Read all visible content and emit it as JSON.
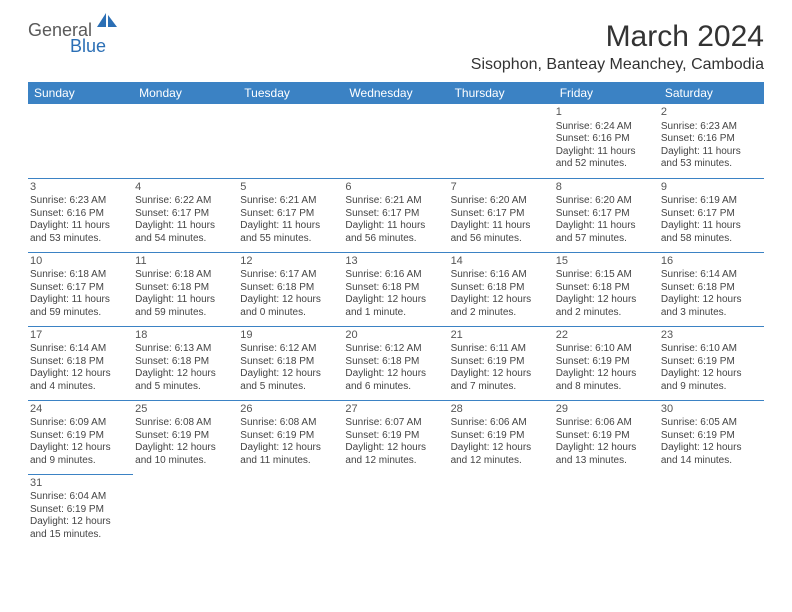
{
  "logo": {
    "text1": "General",
    "text2": "Blue"
  },
  "title": "March 2024",
  "location": "Sisophon, Banteay Meanchey, Cambodia",
  "colors": {
    "header_bg": "#3b82c4",
    "header_text": "#ffffff",
    "border": "#3b82c4",
    "logo_gray": "#5a5a5a",
    "logo_blue": "#2b6fb5",
    "text": "#444444"
  },
  "days_of_week": [
    "Sunday",
    "Monday",
    "Tuesday",
    "Wednesday",
    "Thursday",
    "Friday",
    "Saturday"
  ],
  "weeks": [
    [
      null,
      null,
      null,
      null,
      null,
      {
        "n": "1",
        "sr": "Sunrise: 6:24 AM",
        "ss": "Sunset: 6:16 PM",
        "d1": "Daylight: 11 hours",
        "d2": "and 52 minutes."
      },
      {
        "n": "2",
        "sr": "Sunrise: 6:23 AM",
        "ss": "Sunset: 6:16 PM",
        "d1": "Daylight: 11 hours",
        "d2": "and 53 minutes."
      }
    ],
    [
      {
        "n": "3",
        "sr": "Sunrise: 6:23 AM",
        "ss": "Sunset: 6:16 PM",
        "d1": "Daylight: 11 hours",
        "d2": "and 53 minutes."
      },
      {
        "n": "4",
        "sr": "Sunrise: 6:22 AM",
        "ss": "Sunset: 6:17 PM",
        "d1": "Daylight: 11 hours",
        "d2": "and 54 minutes."
      },
      {
        "n": "5",
        "sr": "Sunrise: 6:21 AM",
        "ss": "Sunset: 6:17 PM",
        "d1": "Daylight: 11 hours",
        "d2": "and 55 minutes."
      },
      {
        "n": "6",
        "sr": "Sunrise: 6:21 AM",
        "ss": "Sunset: 6:17 PM",
        "d1": "Daylight: 11 hours",
        "d2": "and 56 minutes."
      },
      {
        "n": "7",
        "sr": "Sunrise: 6:20 AM",
        "ss": "Sunset: 6:17 PM",
        "d1": "Daylight: 11 hours",
        "d2": "and 56 minutes."
      },
      {
        "n": "8",
        "sr": "Sunrise: 6:20 AM",
        "ss": "Sunset: 6:17 PM",
        "d1": "Daylight: 11 hours",
        "d2": "and 57 minutes."
      },
      {
        "n": "9",
        "sr": "Sunrise: 6:19 AM",
        "ss": "Sunset: 6:17 PM",
        "d1": "Daylight: 11 hours",
        "d2": "and 58 minutes."
      }
    ],
    [
      {
        "n": "10",
        "sr": "Sunrise: 6:18 AM",
        "ss": "Sunset: 6:17 PM",
        "d1": "Daylight: 11 hours",
        "d2": "and 59 minutes."
      },
      {
        "n": "11",
        "sr": "Sunrise: 6:18 AM",
        "ss": "Sunset: 6:18 PM",
        "d1": "Daylight: 11 hours",
        "d2": "and 59 minutes."
      },
      {
        "n": "12",
        "sr": "Sunrise: 6:17 AM",
        "ss": "Sunset: 6:18 PM",
        "d1": "Daylight: 12 hours",
        "d2": "and 0 minutes."
      },
      {
        "n": "13",
        "sr": "Sunrise: 6:16 AM",
        "ss": "Sunset: 6:18 PM",
        "d1": "Daylight: 12 hours",
        "d2": "and 1 minute."
      },
      {
        "n": "14",
        "sr": "Sunrise: 6:16 AM",
        "ss": "Sunset: 6:18 PM",
        "d1": "Daylight: 12 hours",
        "d2": "and 2 minutes."
      },
      {
        "n": "15",
        "sr": "Sunrise: 6:15 AM",
        "ss": "Sunset: 6:18 PM",
        "d1": "Daylight: 12 hours",
        "d2": "and 2 minutes."
      },
      {
        "n": "16",
        "sr": "Sunrise: 6:14 AM",
        "ss": "Sunset: 6:18 PM",
        "d1": "Daylight: 12 hours",
        "d2": "and 3 minutes."
      }
    ],
    [
      {
        "n": "17",
        "sr": "Sunrise: 6:14 AM",
        "ss": "Sunset: 6:18 PM",
        "d1": "Daylight: 12 hours",
        "d2": "and 4 minutes."
      },
      {
        "n": "18",
        "sr": "Sunrise: 6:13 AM",
        "ss": "Sunset: 6:18 PM",
        "d1": "Daylight: 12 hours",
        "d2": "and 5 minutes."
      },
      {
        "n": "19",
        "sr": "Sunrise: 6:12 AM",
        "ss": "Sunset: 6:18 PM",
        "d1": "Daylight: 12 hours",
        "d2": "and 5 minutes."
      },
      {
        "n": "20",
        "sr": "Sunrise: 6:12 AM",
        "ss": "Sunset: 6:18 PM",
        "d1": "Daylight: 12 hours",
        "d2": "and 6 minutes."
      },
      {
        "n": "21",
        "sr": "Sunrise: 6:11 AM",
        "ss": "Sunset: 6:19 PM",
        "d1": "Daylight: 12 hours",
        "d2": "and 7 minutes."
      },
      {
        "n": "22",
        "sr": "Sunrise: 6:10 AM",
        "ss": "Sunset: 6:19 PM",
        "d1": "Daylight: 12 hours",
        "d2": "and 8 minutes."
      },
      {
        "n": "23",
        "sr": "Sunrise: 6:10 AM",
        "ss": "Sunset: 6:19 PM",
        "d1": "Daylight: 12 hours",
        "d2": "and 9 minutes."
      }
    ],
    [
      {
        "n": "24",
        "sr": "Sunrise: 6:09 AM",
        "ss": "Sunset: 6:19 PM",
        "d1": "Daylight: 12 hours",
        "d2": "and 9 minutes."
      },
      {
        "n": "25",
        "sr": "Sunrise: 6:08 AM",
        "ss": "Sunset: 6:19 PM",
        "d1": "Daylight: 12 hours",
        "d2": "and 10 minutes."
      },
      {
        "n": "26",
        "sr": "Sunrise: 6:08 AM",
        "ss": "Sunset: 6:19 PM",
        "d1": "Daylight: 12 hours",
        "d2": "and 11 minutes."
      },
      {
        "n": "27",
        "sr": "Sunrise: 6:07 AM",
        "ss": "Sunset: 6:19 PM",
        "d1": "Daylight: 12 hours",
        "d2": "and 12 minutes."
      },
      {
        "n": "28",
        "sr": "Sunrise: 6:06 AM",
        "ss": "Sunset: 6:19 PM",
        "d1": "Daylight: 12 hours",
        "d2": "and 12 minutes."
      },
      {
        "n": "29",
        "sr": "Sunrise: 6:06 AM",
        "ss": "Sunset: 6:19 PM",
        "d1": "Daylight: 12 hours",
        "d2": "and 13 minutes."
      },
      {
        "n": "30",
        "sr": "Sunrise: 6:05 AM",
        "ss": "Sunset: 6:19 PM",
        "d1": "Daylight: 12 hours",
        "d2": "and 14 minutes."
      }
    ],
    [
      {
        "n": "31",
        "sr": "Sunrise: 6:04 AM",
        "ss": "Sunset: 6:19 PM",
        "d1": "Daylight: 12 hours",
        "d2": "and 15 minutes."
      },
      null,
      null,
      null,
      null,
      null,
      null
    ]
  ]
}
